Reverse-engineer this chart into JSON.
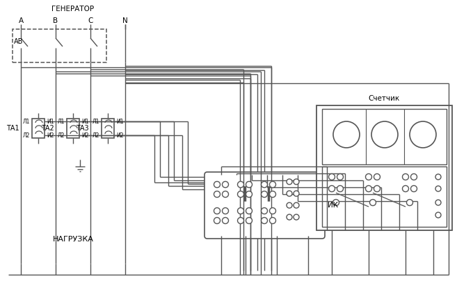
{
  "bg": "#ffffff",
  "lc": "#555555",
  "figsize": [
    6.57,
    4.08
  ],
  "dpi": 100,
  "generator": "ГЕНЕРАТОР",
  "A": "А",
  "B": "В",
  "C": "С",
  "N": "N",
  "AB": "АВ",
  "nagruzka": "НАГРУЗКА",
  "ik": "ИК",
  "schetnik": "Счетчик",
  "TA1": "ТА1",
  "TA2": "ТА2",
  "TA3": "ТА3",
  "L1": "Л1",
  "L2": "Л2",
  "I1": "И1",
  "I2": "И2"
}
